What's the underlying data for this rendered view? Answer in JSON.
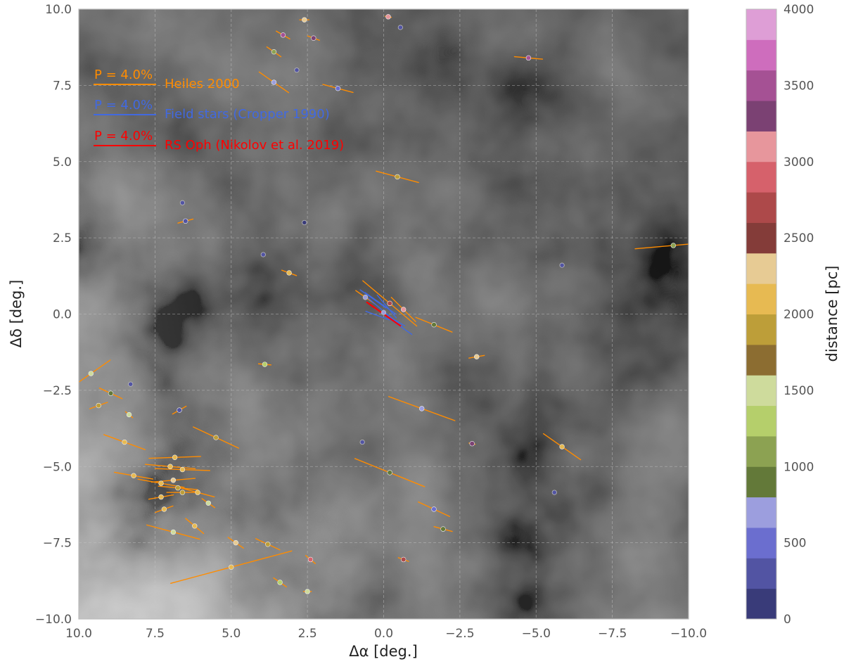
{
  "chart_data": {
    "type": "scatter",
    "title": "",
    "xlabel": "Δα [deg.]",
    "ylabel": "Δδ [deg.]",
    "xlim": [
      10.0,
      -10.0
    ],
    "ylim": [
      -10.0,
      10.0
    ],
    "xticks": [
      "10.0",
      "7.5",
      "5.0",
      "2.5",
      "0.0",
      "−2.5",
      "−5.0",
      "−7.5",
      "−10.0"
    ],
    "yticks": [
      "10.0",
      "7.5",
      "5.0",
      "2.5",
      "0.0",
      "−2.5",
      "−5.0",
      "−7.5",
      "−10.0"
    ],
    "grid": true,
    "background": "grayscale dust emission map",
    "legend_position": "top-left",
    "legend": [
      {
        "scale_label": "P = 4.0%",
        "name": "Heiles 2000",
        "color": "#ff8c00"
      },
      {
        "scale_label": "P = 4.0%",
        "name": "Field stars (Cropper 1990)",
        "color": "#4169e1"
      },
      {
        "scale_label": "P = 4.0%",
        "name": "RS Oph (Nikolov et al. 2019)",
        "color": "#ff0000"
      }
    ],
    "colorbar": {
      "label": "distance [pc]",
      "ticks": [
        "4000",
        "3500",
        "3000",
        "2500",
        "2000",
        "1500",
        "1000",
        "500",
        "0"
      ],
      "range": [
        0,
        4000
      ],
      "colors": [
        "#393b79",
        "#5254a3",
        "#6b6ecf",
        "#9c9ede",
        "#637939",
        "#8ca252",
        "#b5cf6b",
        "#cedb9c",
        "#8c6d31",
        "#bd9e39",
        "#e7ba52",
        "#e7cb94",
        "#843c39",
        "#ad494a",
        "#d6616b",
        "#e7969c",
        "#7b4173",
        "#a55194",
        "#ce6dbd",
        "#de9ed6"
      ]
    },
    "series": [
      {
        "name": "Heiles 2000",
        "color": "#ff8c00",
        "points": [
          {
            "x": 2.6,
            "y": 9.65,
            "d": 2300,
            "pol": 0.6,
            "pa": 90
          },
          {
            "x": 3.3,
            "y": 9.15,
            "d": 3500,
            "pol": 1.0,
            "pa": 120
          },
          {
            "x": 2.3,
            "y": 9.05,
            "d": 3300,
            "pol": 0.8,
            "pa": 110
          },
          {
            "x": -0.15,
            "y": 9.75,
            "d": 3100,
            "pol": 0.4,
            "pa": 100
          },
          {
            "x": 3.6,
            "y": 8.6,
            "d": 1100,
            "pol": 1.1,
            "pa": 125
          },
          {
            "x": -4.75,
            "y": 8.4,
            "d": 3400,
            "pol": 1.8,
            "pa": 95
          },
          {
            "x": 3.6,
            "y": 7.6,
            "d": 600,
            "pol": 2.3,
            "pa": 125
          },
          {
            "x": 1.5,
            "y": 7.4,
            "d": 500,
            "pol": 2.0,
            "pa": 105
          },
          {
            "x": -0.45,
            "y": 4.5,
            "d": 1900,
            "pol": 2.8,
            "pa": 105
          },
          {
            "x": 6.5,
            "y": 3.05,
            "d": 200,
            "pol": 1.0,
            "pa": 75
          },
          {
            "x": -9.5,
            "y": 2.25,
            "d": 1100,
            "pol": 4.9,
            "pa": 85
          },
          {
            "x": 3.1,
            "y": 1.35,
            "d": 2000,
            "pol": 1.0,
            "pa": 110
          },
          {
            "x": 0.6,
            "y": 0.55,
            "d": 800,
            "pol": 1.5,
            "pa": 125
          },
          {
            "x": -0.65,
            "y": 0.15,
            "d": 3000,
            "pol": 2.2,
            "pa": 135
          },
          {
            "x": -1.65,
            "y": -0.35,
            "d": 900,
            "pol": 2.5,
            "pa": 112
          },
          {
            "x": -0.2,
            "y": 0.35,
            "d": 2600,
            "pol": 4.5,
            "pa": 130
          },
          {
            "x": -3.05,
            "y": -1.4,
            "d": 2300,
            "pol": 1.0,
            "pa": 80
          },
          {
            "x": 3.9,
            "y": -1.65,
            "d": 1200,
            "pol": 0.8,
            "pa": 95
          },
          {
            "x": 9.6,
            "y": -1.95,
            "d": 1500,
            "pol": 3.0,
            "pa": 55
          },
          {
            "x": 8.95,
            "y": -2.6,
            "d": 800,
            "pol": 1.6,
            "pa": 115
          },
          {
            "x": 9.35,
            "y": -3.0,
            "d": 1800,
            "pol": 1.2,
            "pa": 70
          },
          {
            "x": 8.35,
            "y": -3.3,
            "d": 1400,
            "pol": 0.6,
            "pa": 130
          },
          {
            "x": 6.7,
            "y": -3.15,
            "d": 300,
            "pol": 1.0,
            "pa": 60
          },
          {
            "x": -1.25,
            "y": -3.1,
            "d": 600,
            "pol": 4.5,
            "pa": 110
          },
          {
            "x": 5.5,
            "y": -4.05,
            "d": 1900,
            "pol": 3.2,
            "pa": 115
          },
          {
            "x": 8.5,
            "y": -4.2,
            "d": 2100,
            "pol": 2.8,
            "pa": 110
          },
          {
            "x": -5.85,
            "y": -4.35,
            "d": 2100,
            "pol": 2.9,
            "pa": 125
          },
          {
            "x": 6.85,
            "y": -4.7,
            "d": 2100,
            "pol": 3.3,
            "pa": 88
          },
          {
            "x": 7.0,
            "y": -5.0,
            "d": 2000,
            "pol": 3.2,
            "pa": 95
          },
          {
            "x": 8.2,
            "y": -5.3,
            "d": 2100,
            "pol": 2.5,
            "pa": 100
          },
          {
            "x": 6.6,
            "y": -5.1,
            "d": 2000,
            "pol": 3.5,
            "pa": 92
          },
          {
            "x": 7.3,
            "y": -5.55,
            "d": 2100,
            "pol": 3.0,
            "pa": 100
          },
          {
            "x": 6.9,
            "y": -5.45,
            "d": 2200,
            "pol": 2.8,
            "pa": 85
          },
          {
            "x": 6.75,
            "y": -5.7,
            "d": 1800,
            "pol": 2.5,
            "pa": 95
          },
          {
            "x": 6.1,
            "y": -5.85,
            "d": 2000,
            "pol": 2.2,
            "pa": 105
          },
          {
            "x": 7.3,
            "y": -6.0,
            "d": 2000,
            "pol": 1.6,
            "pa": 80
          },
          {
            "x": 6.6,
            "y": -5.85,
            "d": 1900,
            "pol": 2.0,
            "pa": 90
          },
          {
            "x": 7.2,
            "y": -6.4,
            "d": 2000,
            "pol": 1.2,
            "pa": 70
          },
          {
            "x": 5.75,
            "y": -6.2,
            "d": 1500,
            "pol": 1.0,
            "pa": 125
          },
          {
            "x": 6.9,
            "y": -7.15,
            "d": 1500,
            "pol": 3.5,
            "pa": 105
          },
          {
            "x": 6.2,
            "y": -6.95,
            "d": 2000,
            "pol": 1.5,
            "pa": 130
          },
          {
            "x": -0.2,
            "y": -5.2,
            "d": 800,
            "pol": 4.8,
            "pa": 112
          },
          {
            "x": -1.65,
            "y": -6.4,
            "d": 500,
            "pol": 2.2,
            "pa": 115
          },
          {
            "x": -1.95,
            "y": -7.05,
            "d": 900,
            "pol": 1.2,
            "pa": 105
          },
          {
            "x": 4.85,
            "y": -7.5,
            "d": 2200,
            "pol": 1.2,
            "pa": 125
          },
          {
            "x": 3.8,
            "y": -7.55,
            "d": 1800,
            "pol": 1.7,
            "pa": 115
          },
          {
            "x": 2.4,
            "y": -8.05,
            "d": 2800,
            "pol": 0.8,
            "pa": 130
          },
          {
            "x": 5.0,
            "y": -8.3,
            "d": 2000,
            "pol": 8.0,
            "pa": 75
          },
          {
            "x": 3.4,
            "y": -8.8,
            "d": 1200,
            "pol": 1.0,
            "pa": 125
          },
          {
            "x": 2.5,
            "y": -9.1,
            "d": 1500,
            "pol": 0.5,
            "pa": 90
          },
          {
            "x": -0.65,
            "y": -8.05,
            "d": 2600,
            "pol": 0.7,
            "pa": 110
          },
          {
            "x": -2.9,
            "y": -4.25,
            "d": 3300,
            "pol": 0.4,
            "pa": 100
          }
        ]
      },
      {
        "name": "Field stars (Cropper 1990)",
        "color": "#4169e1",
        "points": [
          {
            "x": 0.35,
            "y": 0.5,
            "pol": 2.0,
            "pa": 125
          },
          {
            "x": 0.1,
            "y": 0.35,
            "pol": 2.4,
            "pa": 125
          },
          {
            "x": -0.05,
            "y": 0.05,
            "pol": 2.8,
            "pa": 130
          },
          {
            "x": -0.2,
            "y": -0.1,
            "pol": 2.2,
            "pa": 120
          },
          {
            "x": -0.4,
            "y": -0.3,
            "pol": 2.5,
            "pa": 125
          },
          {
            "x": 0.2,
            "y": -0.05,
            "pol": 1.6,
            "pa": 110
          },
          {
            "x": -0.1,
            "y": 0.25,
            "pol": 1.9,
            "pa": 140
          }
        ]
      },
      {
        "name": "RS Oph (Nikolov et al. 2019)",
        "color": "#ff0000",
        "points": [
          {
            "x": 0.0,
            "y": 0.0,
            "pol": 2.6,
            "pa": 125
          }
        ]
      }
    ],
    "unpolarized_stars": [
      {
        "x": -0.55,
        "y": 9.4,
        "d": 200
      },
      {
        "x": 2.85,
        "y": 8.0,
        "d": 200
      },
      {
        "x": 6.6,
        "y": 3.65,
        "d": 200
      },
      {
        "x": 2.6,
        "y": 3.0,
        "d": 100
      },
      {
        "x": 3.95,
        "y": 1.95,
        "d": 200
      },
      {
        "x": -5.85,
        "y": 1.6,
        "d": 300
      },
      {
        "x": 8.3,
        "y": -2.3,
        "d": 200
      },
      {
        "x": 0.7,
        "y": -4.2,
        "d": 300
      },
      {
        "x": -5.6,
        "y": -5.85,
        "d": 200
      },
      {
        "x": 0.0,
        "y": 0.05,
        "d": 700
      },
      {
        "x": 0.6,
        "y": 0.55,
        "d": 700
      }
    ]
  }
}
